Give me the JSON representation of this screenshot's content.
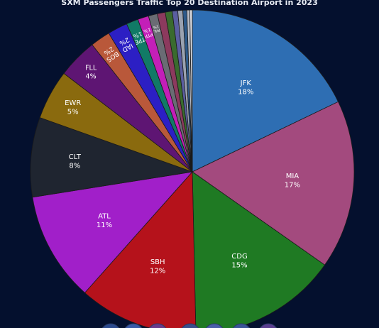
{
  "chart_data": {
    "type": "pie",
    "title": "SXM Passengers Traffic Top 20 Destination Airport in 2023",
    "slices": [
      {
        "label": "JFK",
        "value": 18,
        "pct": "18%",
        "color": "#2e6eb3"
      },
      {
        "label": "MIA",
        "value": 17,
        "pct": "17%",
        "color": "#a34a7e"
      },
      {
        "label": "CDG",
        "value": 15,
        "pct": "15%",
        "color": "#1f7a23"
      },
      {
        "label": "SBH",
        "value": 12,
        "pct": "12%",
        "color": "#b5121b"
      },
      {
        "label": "ATL",
        "value": 11,
        "pct": "11%",
        "color": "#a11fc9"
      },
      {
        "label": "CLT",
        "value": 8,
        "pct": "8%",
        "color": "#1f2530"
      },
      {
        "label": "EWR",
        "value": 5,
        "pct": "5%",
        "color": "#8a6a0e"
      },
      {
        "label": "FLL",
        "value": 4,
        "pct": "4%",
        "color": "#5e1573"
      },
      {
        "label": "BOS",
        "value": 2,
        "pct": "2%",
        "color": "#b9583a"
      },
      {
        "label": "IAD",
        "value": 2,
        "pct": "2%",
        "color": "#2c1fc4"
      },
      {
        "label": "TPE",
        "value": 1.2,
        "pct": "1%",
        "color": "#117a66"
      },
      {
        "label": "PTP",
        "value": 1.1,
        "pct": "1%",
        "color": "#c31fb8"
      },
      {
        "label": "PHL",
        "value": 0.9,
        "pct": "1%",
        "color": "#6a6c74"
      },
      {
        "label": "",
        "value": 0.8,
        "pct": "",
        "color": "#8c3a5e"
      },
      {
        "label": "",
        "value": 0.7,
        "pct": "",
        "color": "#3a6b2e"
      },
      {
        "label": "",
        "value": 0.55,
        "pct": "",
        "color": "#5a5ea0"
      },
      {
        "label": "",
        "value": 0.5,
        "pct": "",
        "color": "#9aa2b0"
      },
      {
        "label": "",
        "value": 0.4,
        "pct": "",
        "color": "#2e5a8a"
      },
      {
        "label": "",
        "value": 0.3,
        "pct": "",
        "color": "#b8bcc6"
      },
      {
        "label": "",
        "value": 0.25,
        "pct": "",
        "color": "#d6d8de"
      }
    ]
  },
  "bottom_icons": [
    "globe-icon",
    "globe-icon",
    "globe-icon",
    "globe-icon",
    "globe-icon",
    "globe-icon",
    "globe-icon",
    "globe-icon"
  ]
}
